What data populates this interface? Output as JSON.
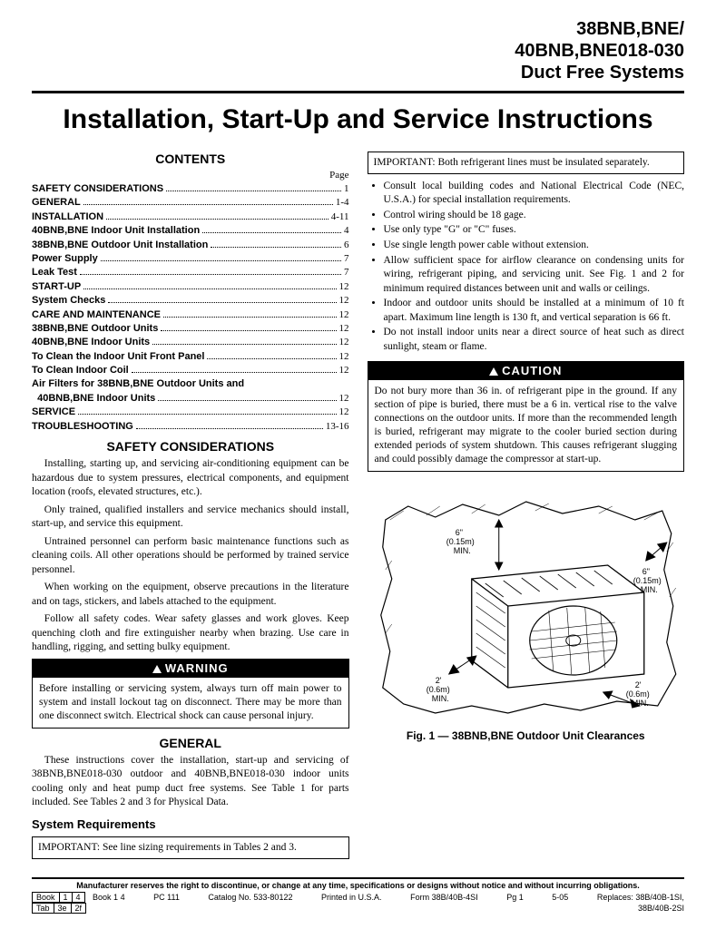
{
  "header": {
    "line1": "38BNB,BNE/",
    "line2": "40BNB,BNE018-030",
    "line3": "Duct Free Systems"
  },
  "title": "Installation, Start-Up and Service Instructions",
  "contents_label": "CONTENTS",
  "page_label": "Page",
  "toc": [
    {
      "label": "SAFETY CONSIDERATIONS",
      "pg": "1",
      "bold": true
    },
    {
      "label": "GENERAL",
      "pg": "1-4",
      "bold": true
    },
    {
      "label": "INSTALLATION",
      "pg": "4-11",
      "bold": true
    },
    {
      "label": "40BNB,BNE Indoor Unit Installation",
      "pg": "4",
      "bold": true
    },
    {
      "label": "38BNB,BNE Outdoor Unit Installation",
      "pg": "6",
      "bold": true
    },
    {
      "label": "Power Supply",
      "pg": "7",
      "bold": true
    },
    {
      "label": "Leak Test",
      "pg": "7",
      "bold": true
    },
    {
      "label": "START-UP",
      "pg": "12",
      "bold": true
    },
    {
      "label": "System Checks",
      "pg": "12",
      "bold": true
    },
    {
      "label": "CARE AND MAINTENANCE",
      "pg": "12",
      "bold": true
    },
    {
      "label": "38BNB,BNE Outdoor Units",
      "pg": "12",
      "bold": true
    },
    {
      "label": "40BNB,BNE Indoor Units",
      "pg": "12",
      "bold": true
    },
    {
      "label": "To Clean the Indoor Unit Front Panel",
      "pg": "12",
      "bold": true
    },
    {
      "label": "To Clean Indoor Coil",
      "pg": "12",
      "bold": true
    },
    {
      "label": "Air Filters for 38BNB,BNE Outdoor Units and",
      "pg": "",
      "bold": true,
      "nodots": true
    },
    {
      "label": "  40BNB,BNE Indoor Units",
      "pg": "12",
      "bold": true
    },
    {
      "label": "SERVICE",
      "pg": "12",
      "bold": true
    },
    {
      "label": "TROUBLESHOOTING",
      "pg": "13-16",
      "bold": true
    }
  ],
  "safety_head": "SAFETY CONSIDERATIONS",
  "safety_paras": [
    "Installing, starting up, and servicing air-conditioning equipment can be hazardous due to system pressures, electrical components, and equipment location (roofs, elevated structures, etc.).",
    "Only trained, qualified installers and service mechanics should install, start-up, and service this equipment.",
    "Untrained personnel can perform basic maintenance functions such as cleaning coils. All other operations should be performed by trained service personnel.",
    "When working on the equipment, observe precautions in the literature and on tags, stickers, and labels attached to the equipment.",
    "Follow all safety codes. Wear safety glasses and work gloves. Keep quenching cloth and fire extinguisher nearby when brazing. Use care in handling, rigging, and setting bulky equipment."
  ],
  "warning_head": "WARNING",
  "warning_body": "Before installing or servicing system, always turn off main power to system and install lockout tag on disconnect. There may be more than one disconnect switch. Electrical shock can cause personal injury.",
  "general_head": "GENERAL",
  "general_para": "These instructions cover the installation, start-up and servicing of 38BNB,BNE018-030 outdoor and 40BNB,BNE018-030 indoor units cooling only and heat pump duct free systems. See Table 1 for parts included. See Tables 2 and 3 for Physical Data.",
  "sysreq_head": "System Requirements",
  "sysreq_box": "IMPORTANT: See line sizing requirements in Tables 2 and 3.",
  "important_box": "IMPORTANT: Both refrigerant lines must be insulated separately.",
  "right_bullets": [
    "Consult local building codes and National Electrical Code (NEC, U.S.A.) for special installation requirements.",
    "Control wiring should be 18 gage.",
    "Use only type \"G\" or \"C\" fuses.",
    "Use single length power cable without extension.",
    "Allow sufficient space for airflow clearance on condensing units for wiring, refrigerant piping, and servicing unit. See Fig. 1 and 2 for minimum required distances between unit and walls or ceilings.",
    "Indoor and outdoor units should be installed at a minimum of 10 ft apart. Maximum line length is 130 ft, and vertical separation is 66 ft.",
    "Do not install indoor units near a direct source of heat such as direct sunlight, steam or flame."
  ],
  "caution_head": "CAUTION",
  "caution_body": "Do not bury more than 36 in. of refrigerant pipe in the ground. If any section of pipe is buried, there must be a 6 in. vertical rise to the valve connections on the outdoor units. If more than the recommended length is buried, refrigerant may migrate to the cooler buried section during extended periods of system shutdown. This causes refrigerant slugging and could possibly damage the compressor at start-up.",
  "figure": {
    "caption": "Fig. 1 — 38BNB,BNE Outdoor Unit Clearances",
    "dims": {
      "top_left": "6\"\n(0.15m)\nMIN.",
      "right": "6\"\n(0.15m)\nMIN.",
      "bottom_left": "2'\n(0.6m)\nMIN.",
      "bottom_right": "2'\n(0.6m)\nMIN."
    }
  },
  "footer": {
    "disclaimer": "Manufacturer reserves the right to discontinue, or change at any time, specifications or designs without notice and without incurring obligations.",
    "row1": [
      "Book 1  4",
      "PC 111",
      "Catalog No. 533-80122",
      "Printed in U.S.A.",
      "Form 38B/40B-4SI",
      "Pg 1",
      "5-05",
      "Replaces: 38B/40B-1SI,"
    ],
    "row2_left_cells": [
      "Book",
      "1",
      "4"
    ],
    "row2_left_cells2": [
      "Tab",
      "3e",
      "2f"
    ],
    "row2_right": "38B/40B-2SI"
  }
}
